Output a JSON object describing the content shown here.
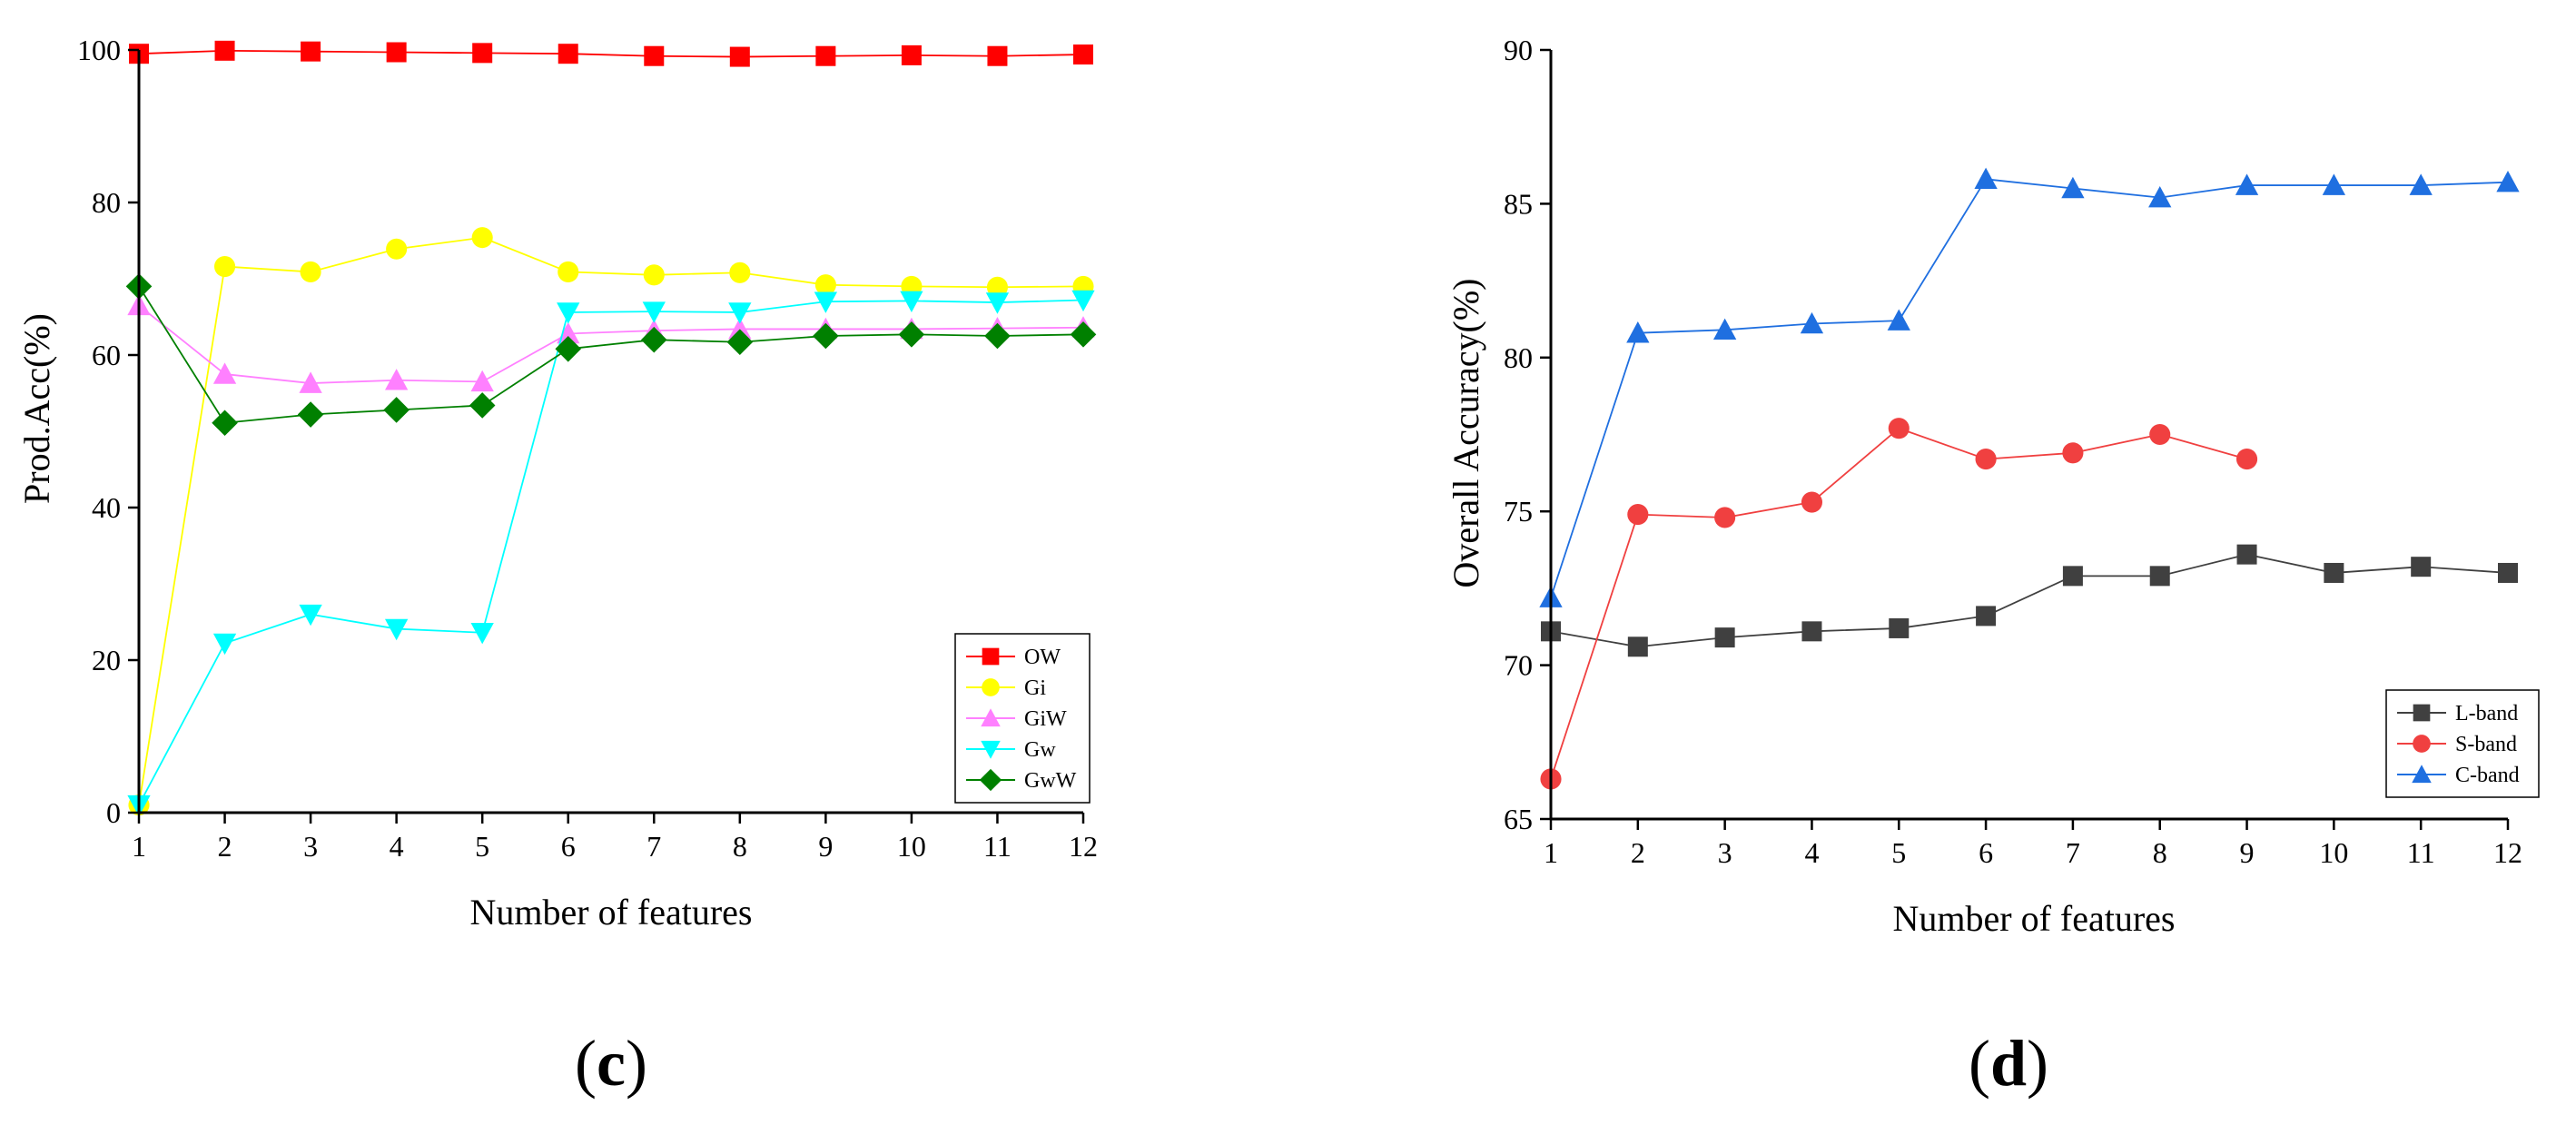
{
  "chart_data": [
    {
      "id": "c",
      "type": "line",
      "panel_label": "(c)",
      "panel_parts": {
        "open": "(",
        "letter": "c",
        "close": ")"
      },
      "title": "",
      "xlabel": "Number of features",
      "ylabel": "Prod.Acc(%)",
      "x": [
        1,
        2,
        3,
        4,
        5,
        6,
        7,
        8,
        9,
        10,
        11,
        12
      ],
      "xlim": [
        1,
        12
      ],
      "ylim": [
        0,
        100
      ],
      "xticks": [
        "1",
        "2",
        "3",
        "4",
        "5",
        "6",
        "7",
        "8",
        "9",
        "10",
        "11",
        "12"
      ],
      "yticks": [
        "0",
        "20",
        "40",
        "60",
        "80",
        "100"
      ],
      "yticks_values": [
        0,
        20,
        40,
        60,
        80,
        100
      ],
      "grid": false,
      "legend_position": "bottom-right",
      "series": [
        {
          "name": "OW",
          "marker": "square",
          "color": "#ff0000",
          "values": [
            99.5,
            99.9,
            99.8,
            99.7,
            99.6,
            99.5,
            99.2,
            99.1,
            99.2,
            99.3,
            99.2,
            99.4
          ]
        },
        {
          "name": "Gi",
          "marker": "circle",
          "color": "#ffff00",
          "values": [
            1.0,
            71.6,
            70.9,
            73.9,
            75.4,
            70.9,
            70.5,
            70.8,
            69.2,
            69.0,
            68.9,
            69.0
          ]
        },
        {
          "name": "GiW",
          "marker": "triangle-up",
          "color": "#ff80ff",
          "values": [
            66.5,
            57.5,
            56.3,
            56.7,
            56.5,
            62.8,
            63.2,
            63.4,
            63.4,
            63.4,
            63.5,
            63.6
          ]
        },
        {
          "name": "Gw",
          "marker": "triangle-down",
          "color": "#00ffff",
          "values": [
            1.0,
            22.2,
            26.0,
            24.1,
            23.6,
            65.6,
            65.7,
            65.6,
            67.0,
            67.1,
            66.9,
            67.2
          ]
        },
        {
          "name": "GwW",
          "marker": "diamond",
          "color": "#008000",
          "values": [
            69.0,
            51.1,
            52.2,
            52.8,
            53.4,
            60.8,
            62.0,
            61.7,
            62.5,
            62.7,
            62.5,
            62.7
          ]
        }
      ]
    },
    {
      "id": "d",
      "type": "line",
      "panel_label": "(d)",
      "panel_parts": {
        "open": "(",
        "letter": "d",
        "close": ")"
      },
      "title": "",
      "xlabel": "Number of features",
      "ylabel": "Overall Accuracy(%)",
      "x": [
        1,
        2,
        3,
        4,
        5,
        6,
        7,
        8,
        9,
        10,
        11,
        12
      ],
      "xlim": [
        1,
        12
      ],
      "ylim": [
        65,
        90
      ],
      "xticks": [
        "1",
        "2",
        "3",
        "4",
        "5",
        "6",
        "7",
        "8",
        "9",
        "10",
        "11",
        "12"
      ],
      "yticks": [
        "65",
        "70",
        "75",
        "80",
        "85",
        "90"
      ],
      "yticks_values": [
        65,
        70,
        75,
        80,
        85,
        90
      ],
      "grid": false,
      "legend_position": "bottom-right",
      "series": [
        {
          "name": "L-band",
          "marker": "square",
          "color": "#404040",
          "values": [
            71.1,
            70.6,
            70.9,
            71.1,
            71.2,
            71.6,
            72.9,
            72.9,
            73.6,
            73.0,
            73.2,
            73.0
          ]
        },
        {
          "name": "S-band",
          "marker": "circle",
          "color": "#f04040",
          "values": [
            66.3,
            74.9,
            74.8,
            75.3,
            77.7,
            76.7,
            76.9,
            77.5,
            76.7,
            null,
            null,
            null
          ]
        },
        {
          "name": "C-band",
          "marker": "triangle-up",
          "color": "#1f6fe0",
          "values": [
            72.2,
            80.8,
            80.9,
            81.1,
            81.2,
            85.8,
            85.5,
            85.2,
            85.6,
            85.6,
            85.6,
            85.7
          ]
        }
      ]
    }
  ]
}
